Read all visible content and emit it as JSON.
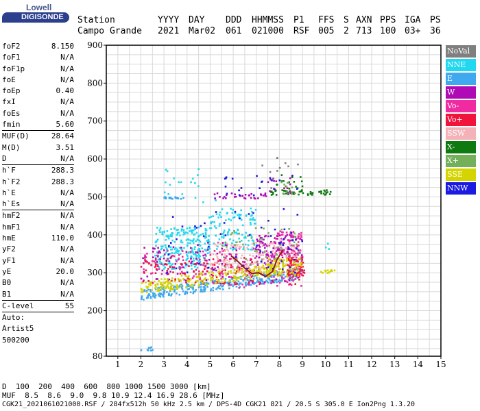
{
  "logo": {
    "top": "Lowell",
    "main": "DIGISONDE"
  },
  "header": {
    "columns": [
      {
        "h": "Station",
        "v": "Campo Grande",
        "x": 113
      },
      {
        "h": "YYYY",
        "v": "2021",
        "x": 230
      },
      {
        "h": "DAY",
        "v": "Mar02",
        "x": 275
      },
      {
        "h": "DDD",
        "v": "061",
        "x": 329
      },
      {
        "h": "HHMMSS",
        "v": "021000",
        "x": 367
      },
      {
        "h": "P1",
        "v": "RSF",
        "x": 428
      },
      {
        "h": "FFS",
        "v": "005",
        "x": 464
      },
      {
        "h": "S",
        "v": "2",
        "x": 501
      },
      {
        "h": "AXN",
        "v": "713",
        "x": 519
      },
      {
        "h": "PPS",
        "v": "100",
        "x": 554
      },
      {
        "h": "IGA",
        "v": "03+",
        "x": 590
      },
      {
        "h": "PS",
        "v": "36",
        "x": 627
      }
    ]
  },
  "parameters": [
    {
      "k": "foF2",
      "v": "8.150"
    },
    {
      "k": "foF1",
      "v": "N/A"
    },
    {
      "k": "foF1p",
      "v": "N/A"
    },
    {
      "k": "foE",
      "v": "N/A"
    },
    {
      "k": "foEp",
      "v": "0.40"
    },
    {
      "k": "fxI",
      "v": "N/A"
    },
    {
      "k": "foEs",
      "v": "N/A"
    },
    {
      "k": "fmin",
      "v": "5.60"
    },
    {
      "k": "MUF(D)",
      "v": "28.64",
      "sep": true
    },
    {
      "k": "M(D)",
      "v": "3.51"
    },
    {
      "k": "D",
      "v": "N/A"
    },
    {
      "k": "h`F",
      "v": "288.3",
      "sep": true
    },
    {
      "k": "h`F2",
      "v": "288.3"
    },
    {
      "k": "h`E",
      "v": "N/A"
    },
    {
      "k": "h`Es",
      "v": "N/A"
    },
    {
      "k": "hmF2",
      "v": "N/A",
      "sep": true
    },
    {
      "k": "hmF1",
      "v": "N/A"
    },
    {
      "k": "hmE",
      "v": "110.0"
    },
    {
      "k": "yF2",
      "v": "N/A"
    },
    {
      "k": "yF1",
      "v": "N/A"
    },
    {
      "k": "yE",
      "v": "20.0"
    },
    {
      "k": "B0",
      "v": "N/A"
    },
    {
      "k": "B1",
      "v": "N/A"
    },
    {
      "k": "C-level",
      "v": "55",
      "sep": true
    },
    {
      "k": "Auto:",
      "v": "",
      "sep": true
    },
    {
      "k": "Artist5",
      "v": ""
    },
    {
      "k": "500200",
      "v": ""
    }
  ],
  "legend": [
    {
      "label": "NoVal",
      "color": "#7f7f7f"
    },
    {
      "label": "NNE",
      "color": "#22d8f0"
    },
    {
      "label": "E",
      "color": "#3fa8ee"
    },
    {
      "label": "W",
      "color": "#b00ab6"
    },
    {
      "label": "Vo-",
      "color": "#f02aa0"
    },
    {
      "label": "Vo+",
      "color": "#f0143c"
    },
    {
      "label": "SSW",
      "color": "#f4b2b8"
    },
    {
      "label": "X-",
      "color": "#0f7a0f"
    },
    {
      "label": "X+",
      "color": "#74b05a"
    },
    {
      "label": "SSE",
      "color": "#d4d400"
    },
    {
      "label": "NNW",
      "color": "#1a1ae0"
    }
  ],
  "footer": {
    "row1_label": "D",
    "row1_values": "  100  200  400  600  800 1000 1500 3000 [km]",
    "row2_label": "MUF",
    "row2_values": "  8.5  8.6  9.0  9.8 10.9 12.4 16.9 28.6 [MHz]",
    "row3": "CGK21_2021061021000.RSF / 284fx512h 50 kHz 2.5 km / DPS-4D CGK21 821 / 20.5 S 305.0 E Ion2Png 1.3.20"
  },
  "chart_data": {
    "type": "scatter",
    "title": "",
    "xlabel": "",
    "ylabel": "",
    "xlim": [
      0.5,
      15
    ],
    "ylim": [
      80,
      900
    ],
    "x_ticks": [
      1,
      2,
      3,
      4,
      5,
      6,
      7,
      8,
      9,
      10,
      11,
      12,
      13,
      14,
      15
    ],
    "y_ticks": [
      80,
      200,
      300,
      400,
      500,
      600,
      700,
      800,
      900
    ],
    "grid": true,
    "legend_placement": "right",
    "trace": {
      "name": "",
      "color": "#8b1a1a",
      "x": [
        5.9,
        6.2,
        6.5,
        6.8,
        7.1,
        7.4,
        7.7,
        7.9,
        8.15
      ],
      "y": [
        345,
        330,
        312,
        298,
        300,
        290,
        303,
        335,
        360
      ]
    },
    "series": [
      {
        "name": "NNE",
        "color": "#22d8f0",
        "clusters": [
          {
            "x": [
              2.6,
              5.0
            ],
            "y": [
              310,
              420
            ],
            "n": 240
          },
          {
            "x": [
              4.8,
              7.0
            ],
            "y": [
              360,
              470
            ],
            "n": 120
          },
          {
            "x": [
              3.0,
              5.5
            ],
            "y": [
              480,
              580
            ],
            "n": 20
          },
          {
            "x": [
              10.0,
              10.2
            ],
            "y": [
              360,
              380
            ],
            "n": 3
          }
        ]
      },
      {
        "name": "E",
        "color": "#3fa8ee",
        "clusters": [
          {
            "x": [
              2.0,
              2.6
            ],
            "y": [
              95,
              105
            ],
            "n": 10
          },
          {
            "x": [
              2.0,
              9.0
            ],
            "y": [
              228,
              290
            ],
            "n": 320,
            "slope": 8
          },
          {
            "x": [
              3.0,
              4.0
            ],
            "y": [
              495,
              500
            ],
            "n": 18
          }
        ]
      },
      {
        "name": "W",
        "color": "#b00ab6",
        "clusters": [
          {
            "x": [
              2.0,
              8.5
            ],
            "y": [
              270,
              380
            ],
            "n": 150
          },
          {
            "x": [
              7.0,
              9.0
            ],
            "y": [
              340,
              400
            ],
            "n": 90
          },
          {
            "x": [
              5.0,
              7.5
            ],
            "y": [
              495,
              510
            ],
            "n": 30
          },
          {
            "x": [
              7.5,
              8.5
            ],
            "y": [
              510,
              550
            ],
            "n": 15
          }
        ]
      },
      {
        "name": "Vo-",
        "color": "#f02aa0",
        "clusters": [
          {
            "x": [
              2.0,
              9.0
            ],
            "y": [
              260,
              360
            ],
            "n": 160
          },
          {
            "x": [
              7.8,
              9.0
            ],
            "y": [
              330,
              410
            ],
            "n": 60
          }
        ]
      },
      {
        "name": "Vo+",
        "color": "#f0143c",
        "clusters": [
          {
            "x": [
              2.0,
              9.0
            ],
            "y": [
              270,
              340
            ],
            "n": 130
          },
          {
            "x": [
              8.3,
              9.1
            ],
            "y": [
              290,
              340
            ],
            "n": 60
          }
        ]
      },
      {
        "name": "SSW",
        "color": "#f4b2b8",
        "clusters": [
          {
            "x": [
              5.0,
              8.8
            ],
            "y": [
              300,
              380
            ],
            "n": 150
          }
        ]
      },
      {
        "name": "X-",
        "color": "#0f7a0f",
        "clusters": [
          {
            "x": [
              7.5,
              10.3
            ],
            "y": [
              505,
              518
            ],
            "n": 50
          },
          {
            "x": [
              7.8,
              9.0
            ],
            "y": [
              520,
              560
            ],
            "n": 15
          }
        ]
      },
      {
        "name": "X+",
        "color": "#74b05a",
        "clusters": [
          {
            "x": [
              5.5,
              9.0
            ],
            "y": [
              305,
              420
            ],
            "n": 50
          },
          {
            "x": [
              8.0,
              9.0
            ],
            "y": [
              500,
              540
            ],
            "n": 10
          }
        ]
      },
      {
        "name": "SSE",
        "color": "#d4d400",
        "clusters": [
          {
            "x": [
              2.0,
              8.0
            ],
            "y": [
              245,
              320
            ],
            "n": 220,
            "slope": 8
          },
          {
            "x": [
              7.5,
              9.0
            ],
            "y": [
              290,
              340
            ],
            "n": 70
          },
          {
            "x": [
              9.8,
              10.5
            ],
            "y": [
              298,
              308
            ],
            "n": 12
          }
        ]
      },
      {
        "name": "NNW",
        "color": "#1a1ae0",
        "clusters": [
          {
            "x": [
              3.0,
              9.0
            ],
            "y": [
              300,
              470
            ],
            "n": 60
          },
          {
            "x": [
              5.5,
              9.0
            ],
            "y": [
              500,
              560
            ],
            "n": 20
          }
        ]
      },
      {
        "name": "NoVal",
        "color": "#7f7f7f",
        "clusters": [
          {
            "x": [
              7.0,
              9.0
            ],
            "y": [
              510,
              610
            ],
            "n": 12
          }
        ]
      }
    ]
  }
}
